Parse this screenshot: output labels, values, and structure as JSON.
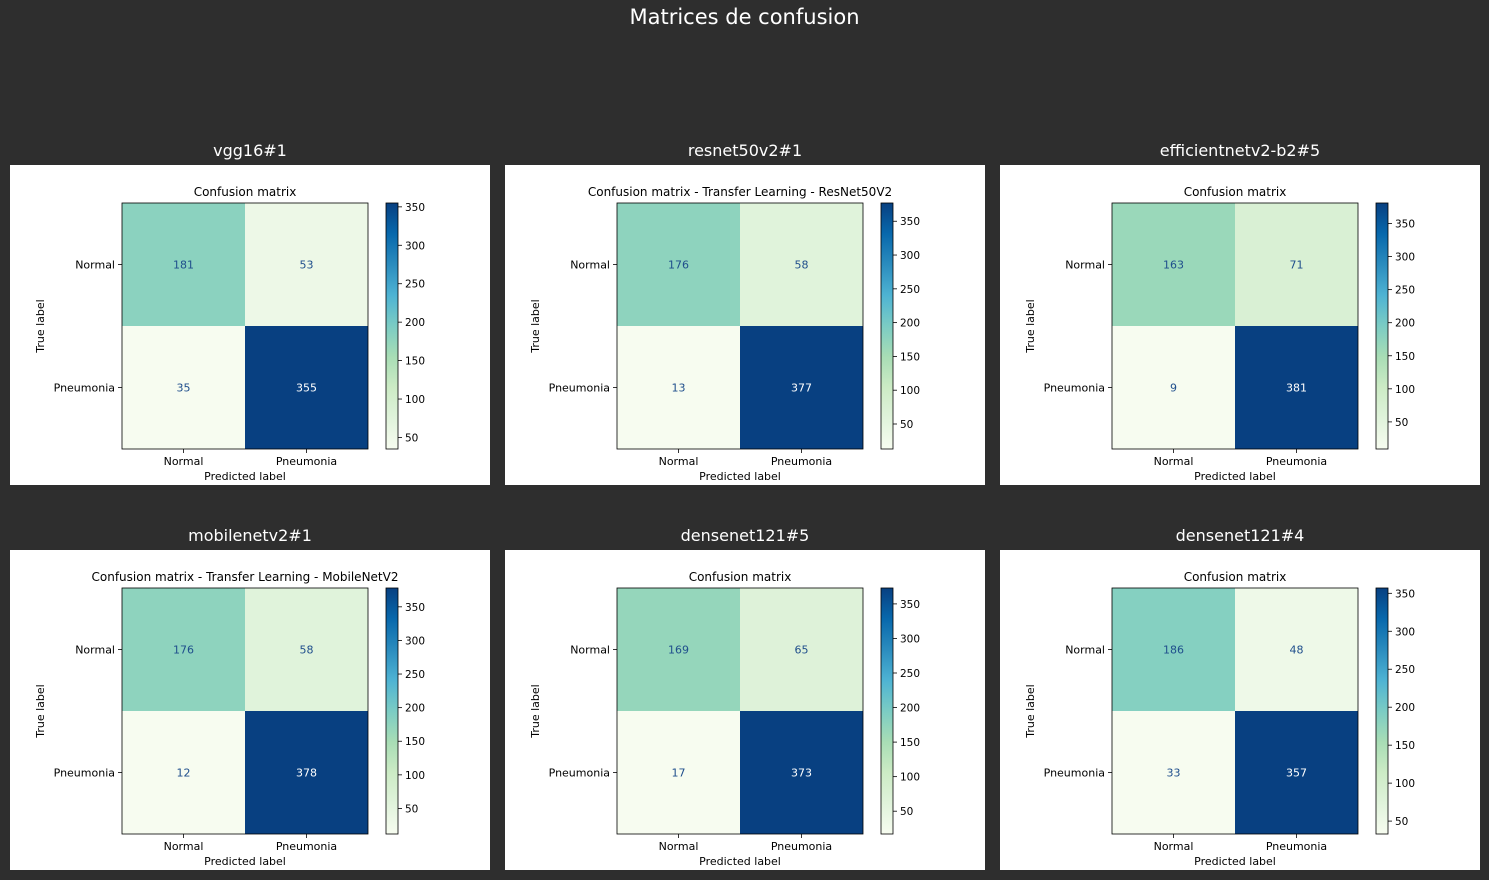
{
  "title": "Matrices de confusion",
  "colors": {
    "background": "#2e2e2e",
    "colormap": "GnBu",
    "text_on_light": "#1f4e8c",
    "text_on_dark": "#ffffff"
  },
  "chart_data": [
    {
      "type": "heatmap",
      "panel_title": "vgg16#1",
      "title": "Confusion matrix",
      "xlabel": "Predicted label",
      "ylabel": "True label",
      "x_categories": [
        "Normal",
        "Pneumonia"
      ],
      "y_categories": [
        "Normal",
        "Pneumonia"
      ],
      "matrix": [
        [
          181,
          53
        ],
        [
          35,
          355
        ]
      ],
      "colorbar_ticks": [
        50,
        100,
        150,
        200,
        250,
        300,
        350
      ]
    },
    {
      "type": "heatmap",
      "panel_title": "resnet50v2#1",
      "title": "Confusion matrix - Transfer Learning - ResNet50V2",
      "xlabel": "Predicted label",
      "ylabel": "True label",
      "x_categories": [
        "Normal",
        "Pneumonia"
      ],
      "y_categories": [
        "Normal",
        "Pneumonia"
      ],
      "matrix": [
        [
          176,
          58
        ],
        [
          13,
          377
        ]
      ],
      "colorbar_ticks": [
        50,
        100,
        150,
        200,
        250,
        300,
        350
      ]
    },
    {
      "type": "heatmap",
      "panel_title": "efficientnetv2-b2#5",
      "title": "Confusion matrix",
      "xlabel": "Predicted label",
      "ylabel": "True label",
      "x_categories": [
        "Normal",
        "Pneumonia"
      ],
      "y_categories": [
        "Normal",
        "Pneumonia"
      ],
      "matrix": [
        [
          163,
          71
        ],
        [
          9,
          381
        ]
      ],
      "colorbar_ticks": [
        50,
        100,
        150,
        200,
        250,
        300,
        350
      ]
    },
    {
      "type": "heatmap",
      "panel_title": "mobilenetv2#1",
      "title": "Confusion matrix - Transfer Learning - MobileNetV2",
      "xlabel": "Predicted label",
      "ylabel": "True label",
      "x_categories": [
        "Normal",
        "Pneumonia"
      ],
      "y_categories": [
        "Normal",
        "Pneumonia"
      ],
      "matrix": [
        [
          176,
          58
        ],
        [
          12,
          378
        ]
      ],
      "colorbar_ticks": [
        50,
        100,
        150,
        200,
        250,
        300,
        350
      ]
    },
    {
      "type": "heatmap",
      "panel_title": "densenet121#5",
      "title": "Confusion matrix",
      "xlabel": "Predicted label",
      "ylabel": "True label",
      "x_categories": [
        "Normal",
        "Pneumonia"
      ],
      "y_categories": [
        "Normal",
        "Pneumonia"
      ],
      "matrix": [
        [
          169,
          65
        ],
        [
          17,
          373
        ]
      ],
      "colorbar_ticks": [
        50,
        100,
        150,
        200,
        250,
        300,
        350
      ]
    },
    {
      "type": "heatmap",
      "panel_title": "densenet121#4",
      "title": "Confusion matrix",
      "xlabel": "Predicted label",
      "ylabel": "True label",
      "x_categories": [
        "Normal",
        "Pneumonia"
      ],
      "y_categories": [
        "Normal",
        "Pneumonia"
      ],
      "matrix": [
        [
          186,
          48
        ],
        [
          33,
          357
        ]
      ],
      "colorbar_ticks": [
        50,
        100,
        150,
        200,
        250,
        300,
        350
      ]
    }
  ]
}
